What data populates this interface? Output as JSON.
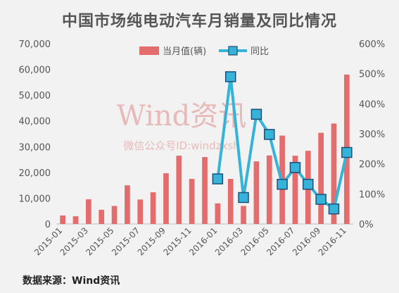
{
  "colors": {
    "bar": "#e46c6c",
    "line": "#35b3d9",
    "marker_fill": "#35b3d9",
    "marker_stroke": "#1f4e79",
    "axis_text": "#555555",
    "grid": "#d9d9d9",
    "watermark": "#e8b9b9"
  },
  "watermark": {
    "line1": "Wind资讯",
    "line2": "微信公众号ID:windzxsh"
  },
  "source_text": "数据来源：Wind资讯",
  "chart_data": {
    "type": "bar",
    "title": "中国市场纯电动汽车月销量及同比情况",
    "categories": [
      "2015-01",
      "2015-02",
      "2015-03",
      "2015-04",
      "2015-05",
      "2015-06",
      "2015-07",
      "2015-08",
      "2015-09",
      "2015-10",
      "2015-11",
      "2015-12",
      "2016-01",
      "2016-02",
      "2016-03",
      "2016-04",
      "2016-05",
      "2016-06",
      "2016-07",
      "2016-08",
      "2016-09",
      "2016-10",
      "2016-11"
    ],
    "x_tick_labels": [
      "2015-01",
      "",
      "2015-03",
      "",
      "2015-05",
      "",
      "2015-07",
      "",
      "2015-09",
      "",
      "2015-11",
      "",
      "2016-01",
      "",
      "2016-03",
      "",
      "2016-05",
      "",
      "2016-07",
      "",
      "2016-09",
      "",
      "2016-11"
    ],
    "series": [
      {
        "name": "当月值(辆)",
        "type": "bar",
        "axis": "left",
        "values": [
          3300,
          3000,
          9600,
          5500,
          7000,
          15000,
          9500,
          12300,
          19700,
          26500,
          17500,
          26000,
          8000,
          17500,
          7000,
          24300,
          26600,
          34300,
          26500,
          28400,
          35400,
          39000,
          58000
        ]
      },
      {
        "name": "同比",
        "type": "line",
        "axis": "right",
        "values": [
          null,
          null,
          null,
          null,
          null,
          null,
          null,
          null,
          null,
          null,
          null,
          null,
          150,
          490,
          88,
          365,
          298,
          132,
          188,
          132,
          82,
          50,
          238
        ]
      }
    ],
    "y_left": {
      "min": 0,
      "max": 70000,
      "ticks": [
        0,
        10000,
        20000,
        30000,
        40000,
        50000,
        60000,
        70000
      ],
      "tick_labels": [
        "0",
        "10,000",
        "20,000",
        "30,000",
        "40,000",
        "50,000",
        "60,000",
        "70,000"
      ]
    },
    "y_right": {
      "min": 0,
      "max": 600,
      "ticks": [
        0,
        100,
        200,
        300,
        400,
        500,
        600
      ],
      "tick_labels": [
        "0%",
        "100%",
        "200%",
        "300%",
        "400%",
        "500%",
        "600%"
      ]
    },
    "legend": {
      "position": "top-center"
    },
    "grid": false
  }
}
